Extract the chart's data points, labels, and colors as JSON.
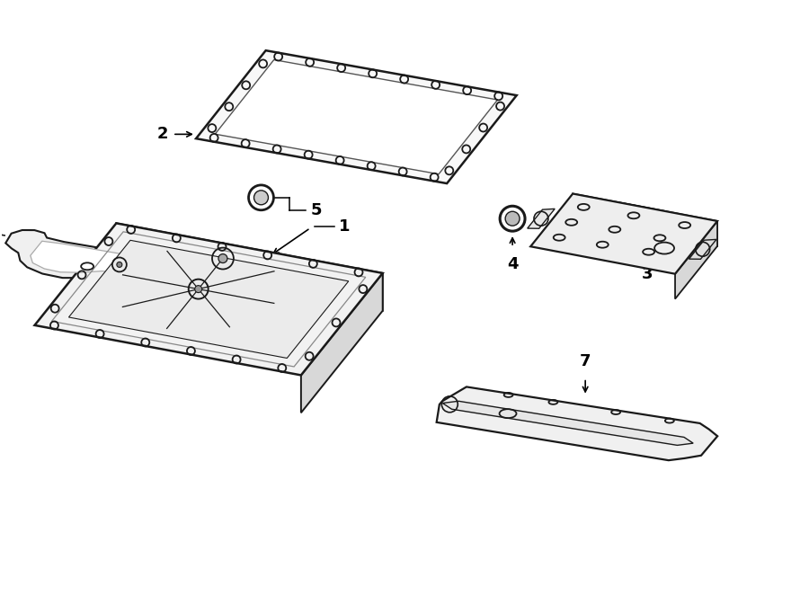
{
  "bg_color": "#ffffff",
  "line_color": "#1a1a1a",
  "figsize": [
    9.0,
    6.62
  ],
  "dpi": 100
}
